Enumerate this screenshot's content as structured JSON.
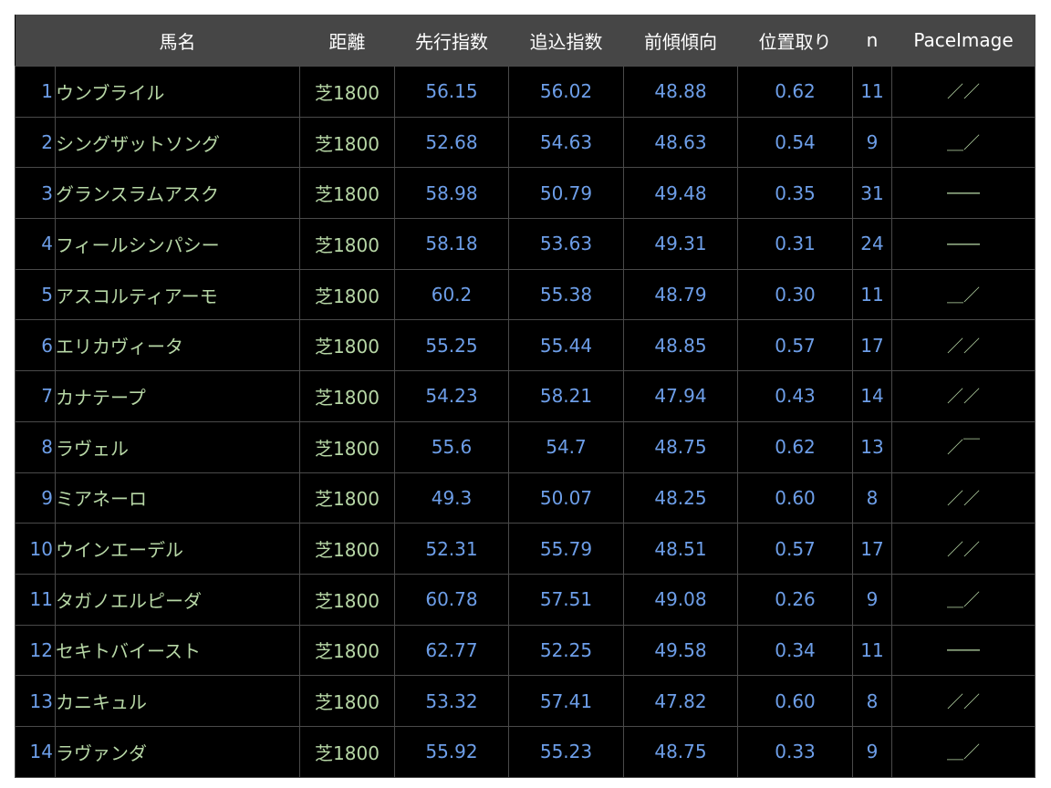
{
  "colors": {
    "header_bg": "#464646",
    "number": "#6d9ee8",
    "text": "#b7d7a6"
  },
  "headers": [
    "",
    "馬名",
    "距離",
    "先行指数",
    "追込指数",
    "前傾傾向",
    "位置取り",
    "n",
    "PaceImage"
  ],
  "rows": [
    [
      "1",
      "ウンブライル",
      "芝1800",
      "56.15",
      "56.02",
      "48.88",
      "0.62",
      "11",
      "／／"
    ],
    [
      "2",
      "シングザットソング",
      "芝1800",
      "52.68",
      "54.63",
      "48.63",
      "0.54",
      "9",
      "＿／"
    ],
    [
      "3",
      "グランスラムアスク",
      "芝1800",
      "58.98",
      "50.79",
      "49.48",
      "0.35",
      "31",
      "――"
    ],
    [
      "4",
      "フィールシンパシー",
      "芝1800",
      "58.18",
      "53.63",
      "49.31",
      "0.31",
      "24",
      "――"
    ],
    [
      "5",
      "アスコルティアーモ",
      "芝1800",
      "60.2",
      "55.38",
      "48.79",
      "0.30",
      "11",
      "＿／"
    ],
    [
      "6",
      "エリカヴィータ",
      "芝1800",
      "55.25",
      "55.44",
      "48.85",
      "0.57",
      "17",
      "／／"
    ],
    [
      "7",
      "カナテープ",
      "芝1800",
      "54.23",
      "58.21",
      "47.94",
      "0.43",
      "14",
      "／／"
    ],
    [
      "8",
      "ラヴェル",
      "芝1800",
      "55.6",
      "54.7",
      "48.75",
      "0.62",
      "13",
      "／￣"
    ],
    [
      "9",
      "ミアネーロ",
      "芝1800",
      "49.3",
      "50.07",
      "48.25",
      "0.60",
      "8",
      "／／"
    ],
    [
      "10",
      "ウインエーデル",
      "芝1800",
      "52.31",
      "55.79",
      "48.51",
      "0.57",
      "17",
      "／／"
    ],
    [
      "11",
      "タガノエルピーダ",
      "芝1800",
      "60.78",
      "57.51",
      "49.08",
      "0.26",
      "9",
      "＿／"
    ],
    [
      "12",
      "セキトバイースト",
      "芝1800",
      "62.77",
      "52.25",
      "49.58",
      "0.34",
      "11",
      "――"
    ],
    [
      "13",
      "カニキュル",
      "芝1800",
      "53.32",
      "57.41",
      "47.82",
      "0.60",
      "8",
      "／／"
    ],
    [
      "14",
      "ラヴァンダ",
      "芝1800",
      "55.92",
      "55.23",
      "48.75",
      "0.33",
      "9",
      "＿／"
    ]
  ]
}
